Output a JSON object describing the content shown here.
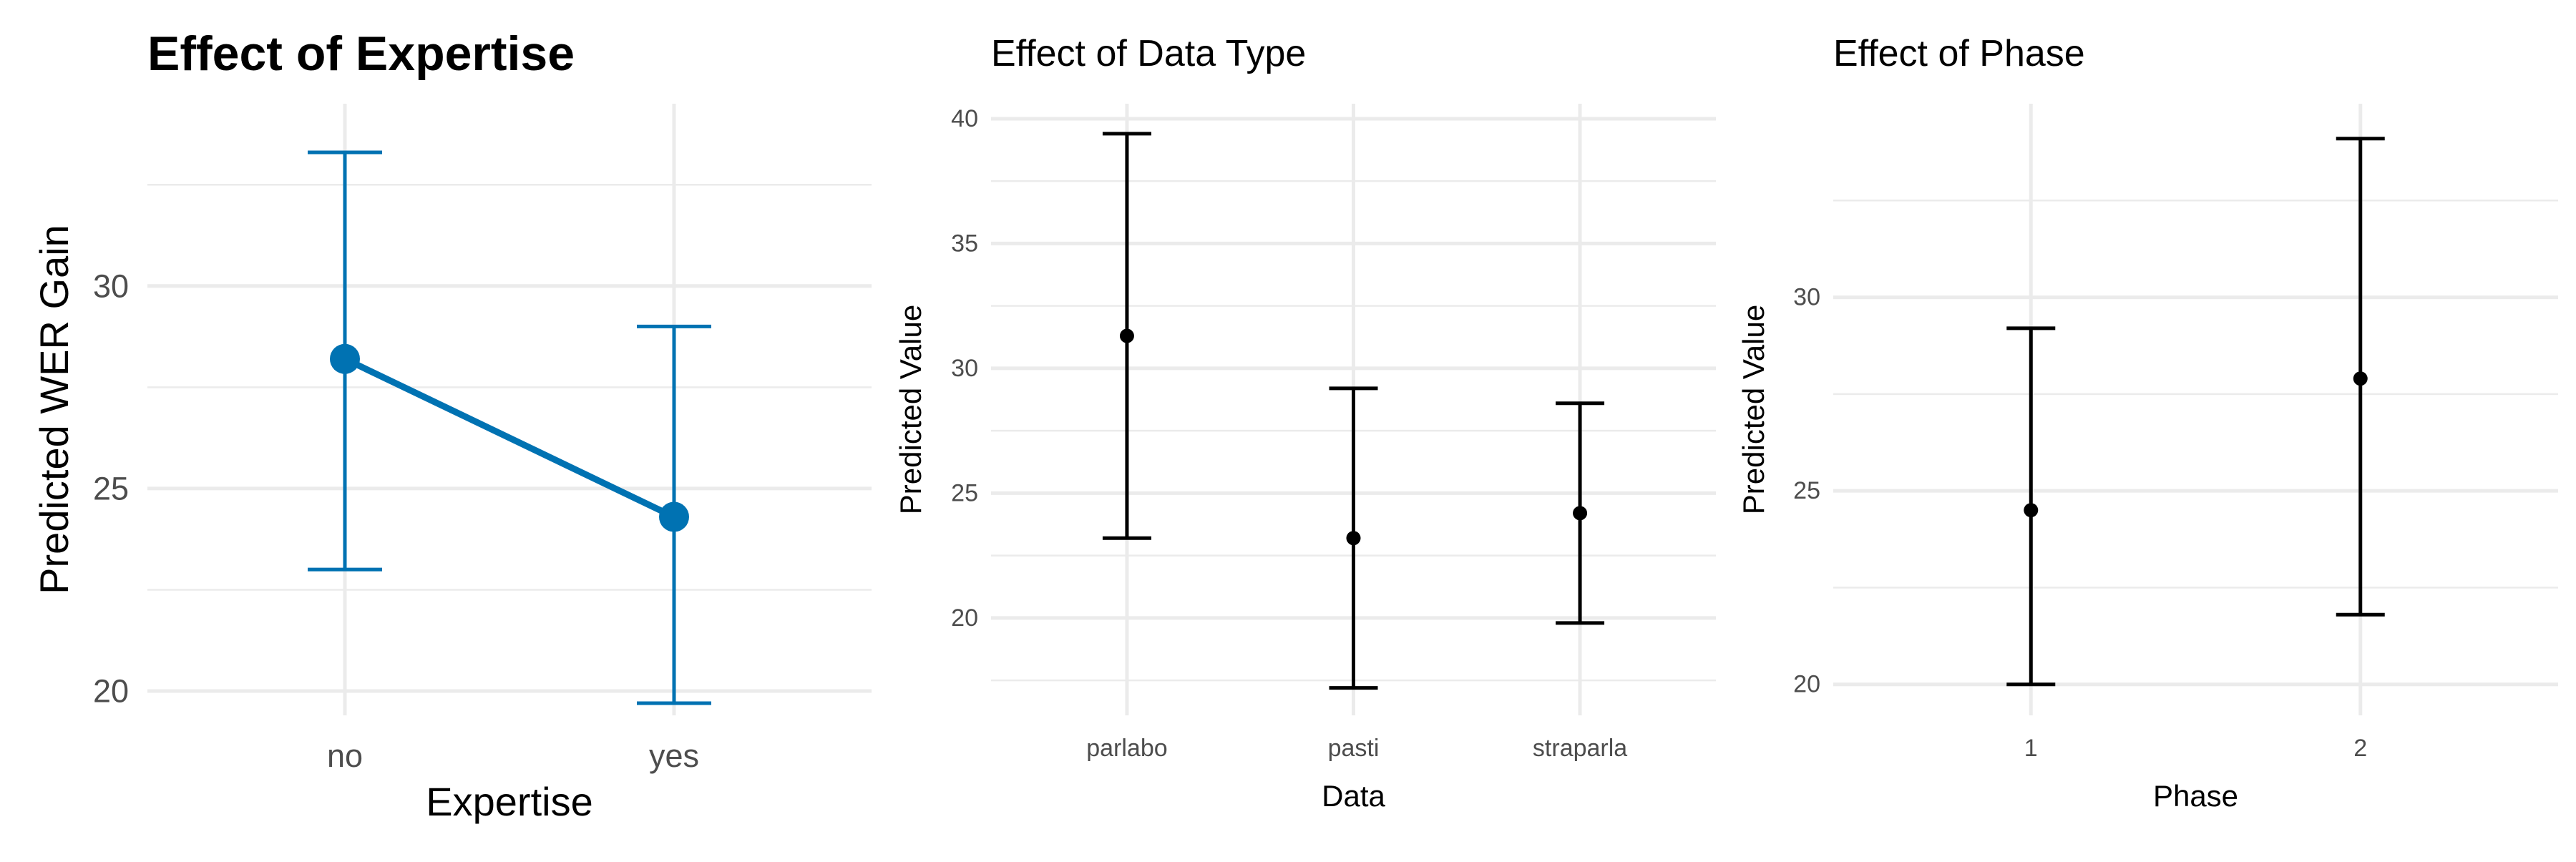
{
  "colors": {
    "panel1": "#0072B2",
    "panel2": "#000000",
    "panel3": "#000000",
    "grid": "#ebebeb",
    "tick_text": "#4d4d4d"
  },
  "chart_data": [
    {
      "type": "line",
      "title": "Effect of Expertise",
      "xlabel": "Expertise",
      "ylabel": "Predicted WER Gain",
      "categories": [
        "no",
        "yes"
      ],
      "values": [
        28.2,
        24.3
      ],
      "lower": [
        23.0,
        19.7
      ],
      "upper": [
        33.3,
        29.0
      ],
      "ylim": [
        19.4,
        34.5
      ],
      "yticks": [
        20,
        25,
        30
      ],
      "grid": true,
      "legend": "none"
    },
    {
      "type": "scatter",
      "title": "Effect of Data Type",
      "xlabel": "Data",
      "ylabel": "Predicted Value",
      "categories": [
        "parlabo",
        "pasti",
        "straparla"
      ],
      "values": [
        31.3,
        23.2,
        24.2
      ],
      "lower": [
        23.2,
        17.2,
        19.8
      ],
      "upper": [
        39.4,
        29.2,
        28.6
      ],
      "ylim": [
        16.1,
        40.6
      ],
      "yticks": [
        20,
        25,
        30,
        35,
        40
      ],
      "grid": true,
      "legend": "none"
    },
    {
      "type": "scatter",
      "title": "Effect of Phase",
      "xlabel": "Phase",
      "ylabel": "Predicted Value",
      "categories": [
        "1",
        "2"
      ],
      "values": [
        24.5,
        27.9
      ],
      "lower": [
        20.0,
        21.8
      ],
      "upper": [
        29.2,
        34.1
      ],
      "ylim": [
        19.2,
        35.0
      ],
      "yticks": [
        20,
        25,
        30
      ],
      "grid": true,
      "legend": "none"
    }
  ]
}
